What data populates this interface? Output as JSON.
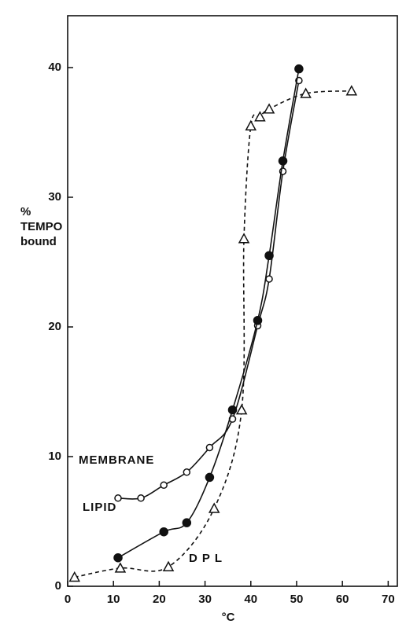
{
  "chart_data": {
    "type": "scatter",
    "x_label": "°C",
    "y_label": [
      "%",
      "TEMPO",
      "bound"
    ],
    "xlim": [
      0,
      72
    ],
    "ylim": [
      0,
      44
    ],
    "xticks": [
      0,
      10,
      20,
      30,
      40,
      50,
      60,
      70
    ],
    "yticks": [
      0,
      10,
      20,
      30,
      40
    ],
    "series": [
      {
        "name": "MEMBRANE",
        "color": "#111111",
        "marker": "open-circle",
        "line": "solid",
        "x": [
          11,
          16,
          21,
          26,
          31,
          36,
          41.5,
          44,
          47,
          50.5
        ],
        "values": [
          6.8,
          6.8,
          7.8,
          8.8,
          10.7,
          12.9,
          20.1,
          23.7,
          32,
          39
        ]
      },
      {
        "name": "LIPID",
        "color": "#111111",
        "marker": "filled-circle",
        "line": "solid",
        "x": [
          11,
          21,
          26,
          31,
          36,
          41.5,
          44,
          47,
          50.5
        ],
        "values": [
          2.2,
          4.2,
          4.9,
          8.4,
          13.6,
          20.5,
          25.5,
          32.8,
          39.9
        ]
      },
      {
        "name": "DPL",
        "color": "#111111",
        "marker": "triangle",
        "line": "dashed",
        "x": [
          1.5,
          11.5,
          22,
          32,
          38,
          38.5,
          40,
          42,
          44,
          52,
          62
        ],
        "values": [
          0.7,
          1.4,
          1.5,
          6,
          13.6,
          26.8,
          35.5,
          36.2,
          36.8,
          38,
          38.2
        ]
      }
    ]
  }
}
